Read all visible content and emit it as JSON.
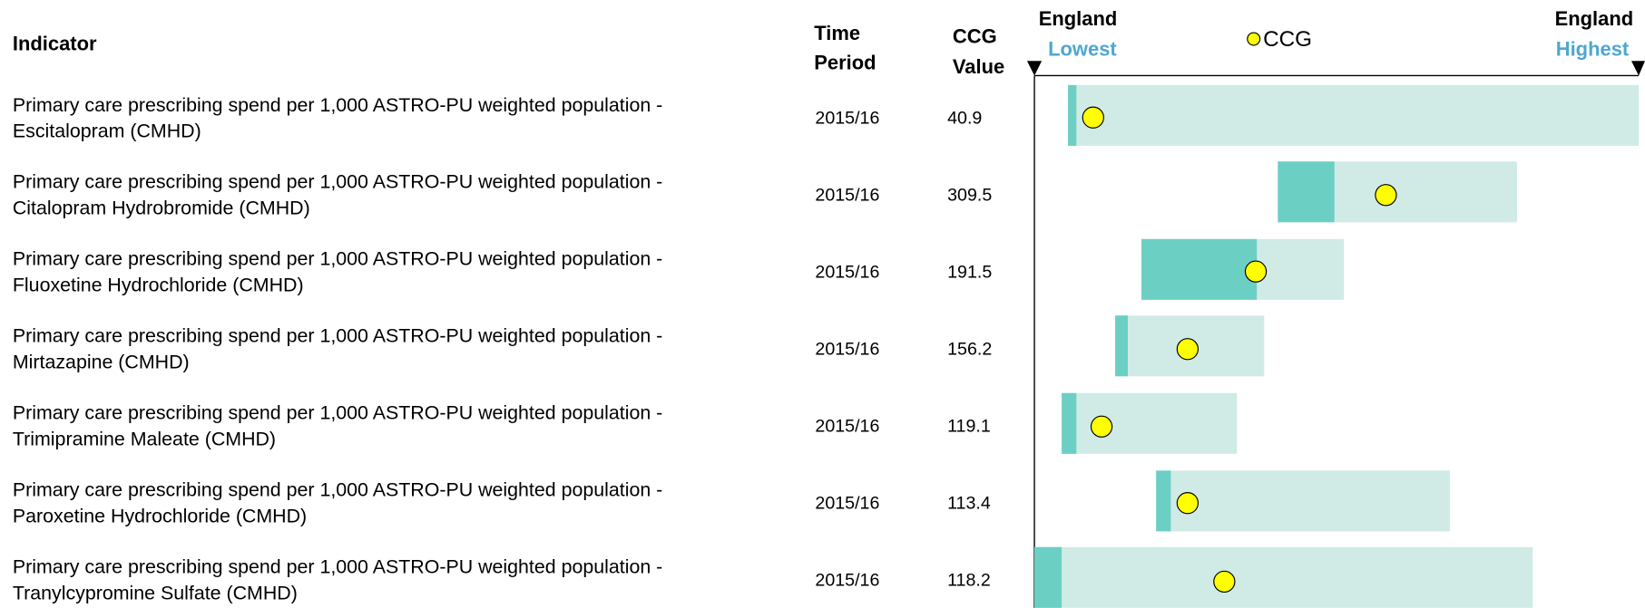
{
  "header": {
    "indicator": "Indicator",
    "time_period": [
      "Time",
      "Period"
    ],
    "ccg_value": [
      "CCG",
      "Value"
    ],
    "england_lowest": [
      "England",
      "Lowest"
    ],
    "legend": "CCG",
    "england_highest": [
      "England",
      "Highest"
    ]
  },
  "rows": [
    {
      "indicator": [
        "Primary care prescribing spend per 1,000 ASTRO-PU weighted population -",
        "Escitalopram (CMHD)"
      ],
      "period": "2015/16",
      "value": 40.9
    },
    {
      "indicator": [
        "Primary care prescribing spend per 1,000 ASTRO-PU weighted population -",
        "Citalopram Hydrobromide (CMHD)"
      ],
      "period": "2015/16",
      "value": 309.5
    },
    {
      "indicator": [
        "Primary care prescribing spend per 1,000 ASTRO-PU weighted population -",
        "Fluoxetine Hydrochloride (CMHD)"
      ],
      "period": "2015/16",
      "value": 191.5
    },
    {
      "indicator": [
        "Primary care prescribing spend per 1,000 ASTRO-PU weighted population -",
        "Mirtazapine (CMHD)"
      ],
      "period": "2015/16",
      "value": 156.2
    },
    {
      "indicator": [
        "Primary care prescribing spend per 1,000 ASTRO-PU weighted population -",
        "Trimipramine Maleate (CMHD)"
      ],
      "period": "2015/16",
      "value": 119.1
    },
    {
      "indicator": [
        "Primary care prescribing spend per 1,000 ASTRO-PU weighted population -",
        "Paroxetine Hydrochloride (CMHD)"
      ],
      "period": "2015/16",
      "value": 113.4
    },
    {
      "indicator": [
        "Primary care prescribing spend per 1,000 ASTRO-PU weighted population -",
        "Tranylcypromine Sulfate (CMHD)"
      ],
      "period": "2015/16",
      "value": 118.2
    }
  ]
}
